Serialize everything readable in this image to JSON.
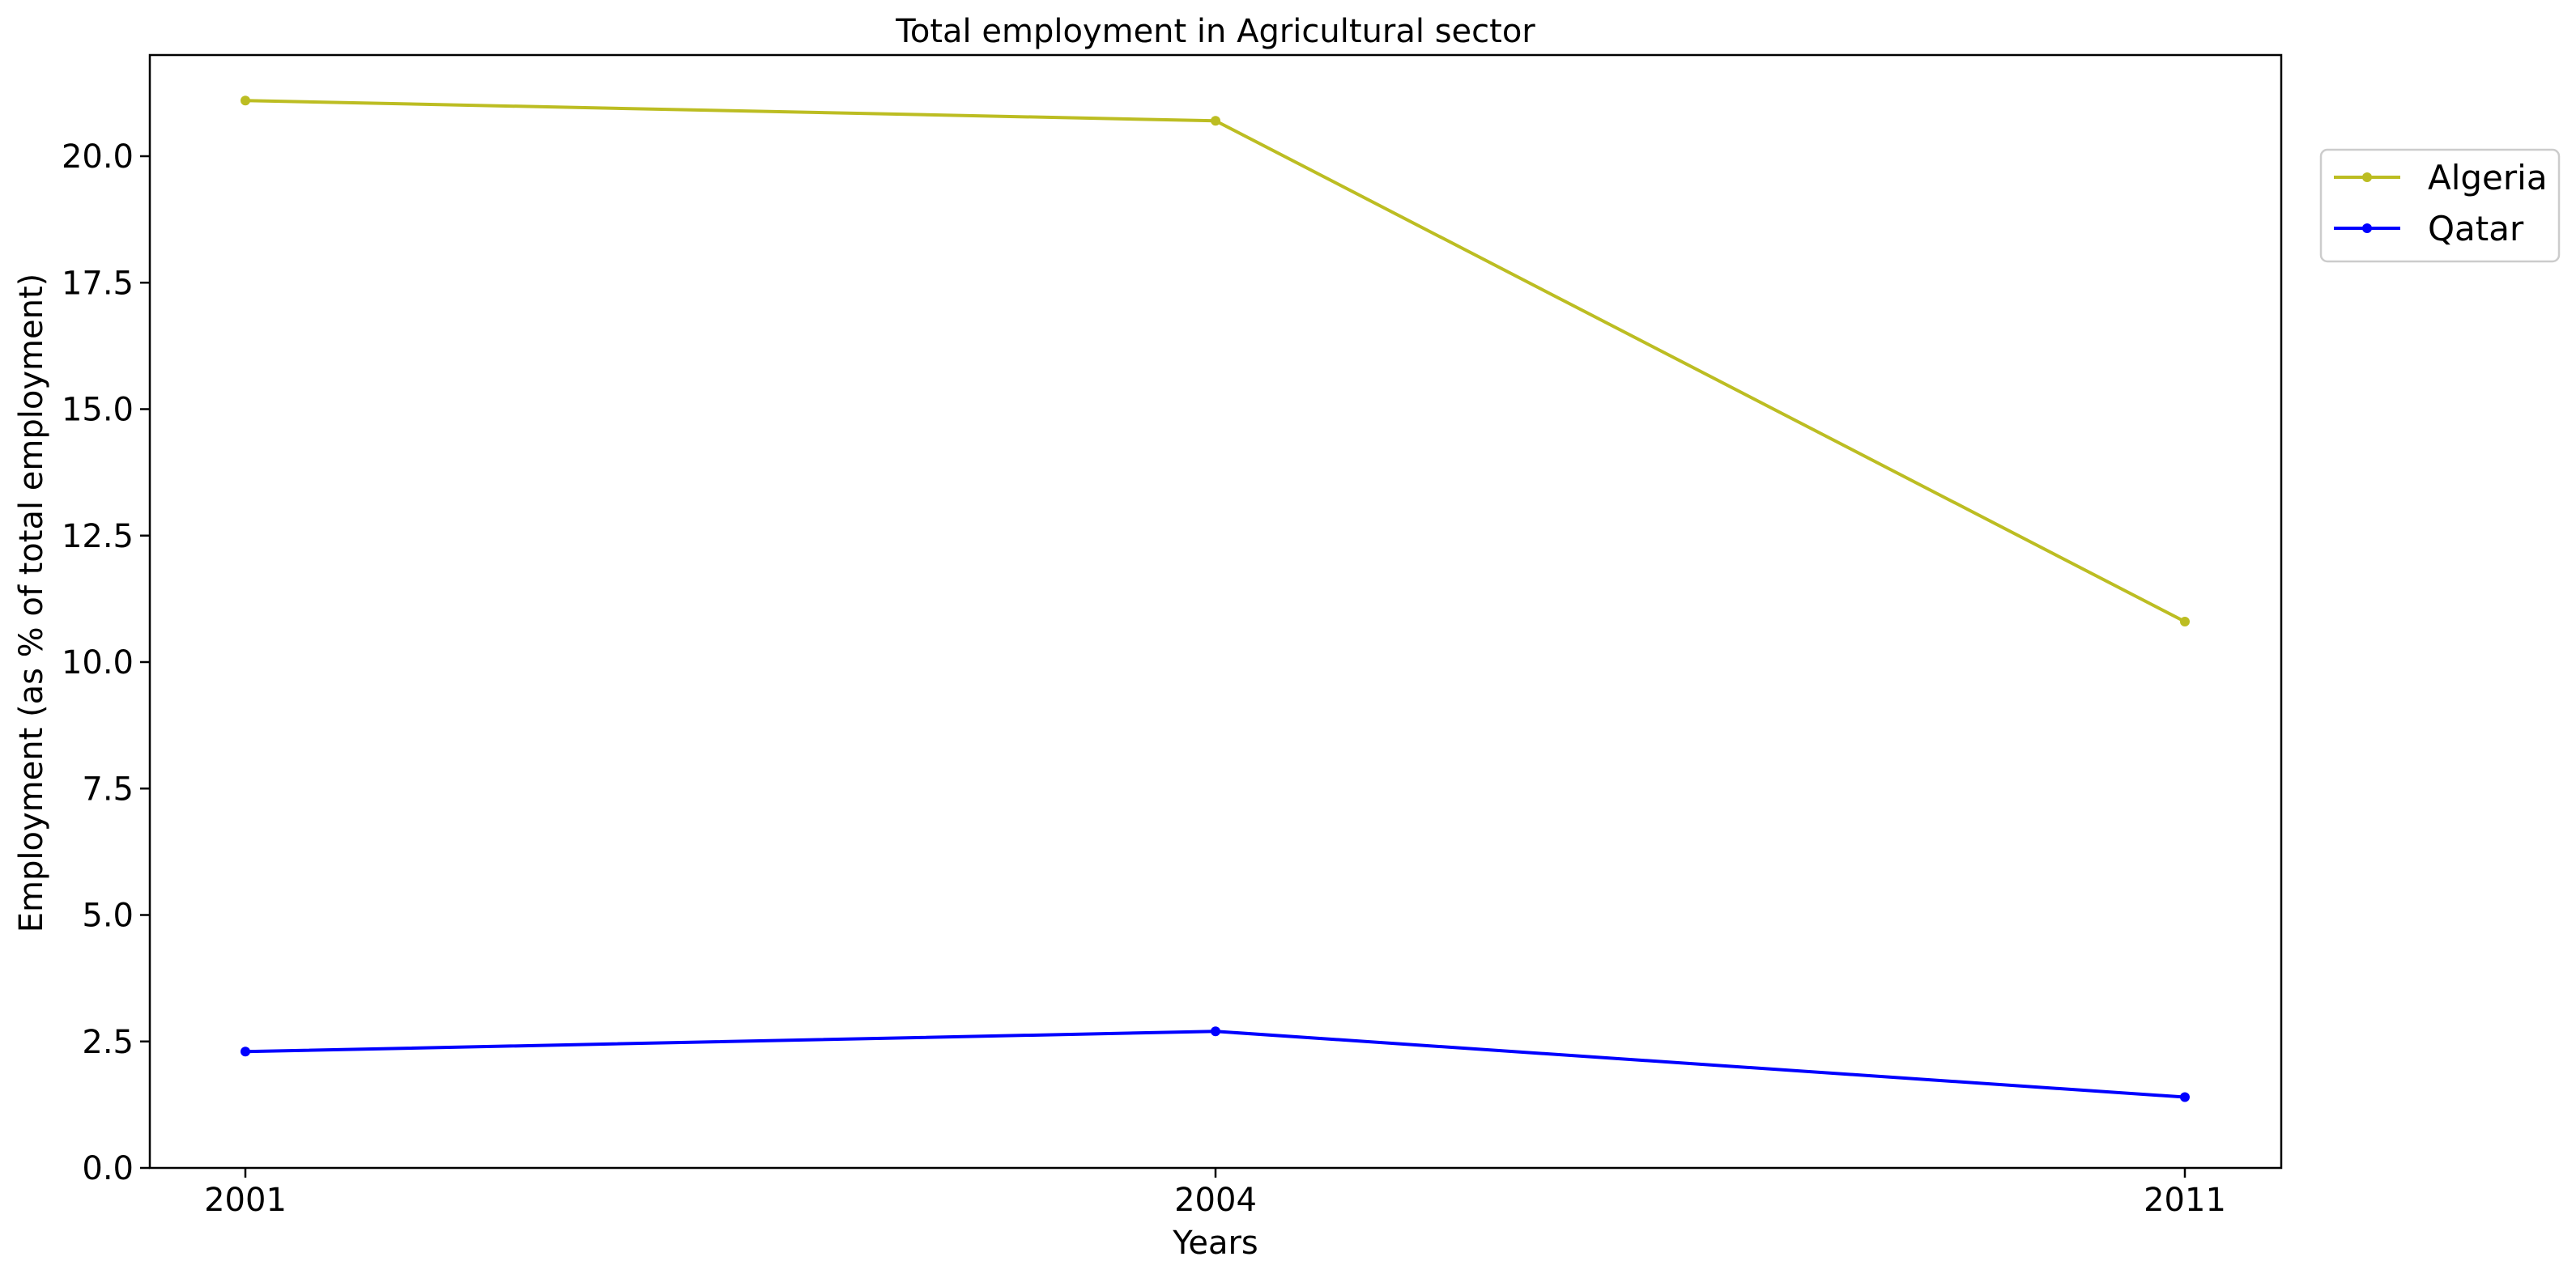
{
  "chart_data": {
    "type": "line",
    "title": "Total employment in Agricultural sector",
    "xlabel": "Years",
    "ylabel": "Employment (as % of total employment)",
    "categories": [
      "2001",
      "2004",
      "2011"
    ],
    "ylim": [
      0,
      22
    ],
    "yticks": [
      "0.0",
      "2.5",
      "5.0",
      "7.5",
      "10.0",
      "12.5",
      "15.0",
      "17.5",
      "20.0"
    ],
    "grid": false,
    "legend_position": "top-right-outside",
    "series": [
      {
        "name": "Algeria",
        "color": "#bcbd22",
        "values": [
          21.1,
          20.7,
          10.8
        ]
      },
      {
        "name": "Qatar",
        "color": "#0000ff",
        "values": [
          2.3,
          2.7,
          1.4
        ]
      }
    ]
  }
}
